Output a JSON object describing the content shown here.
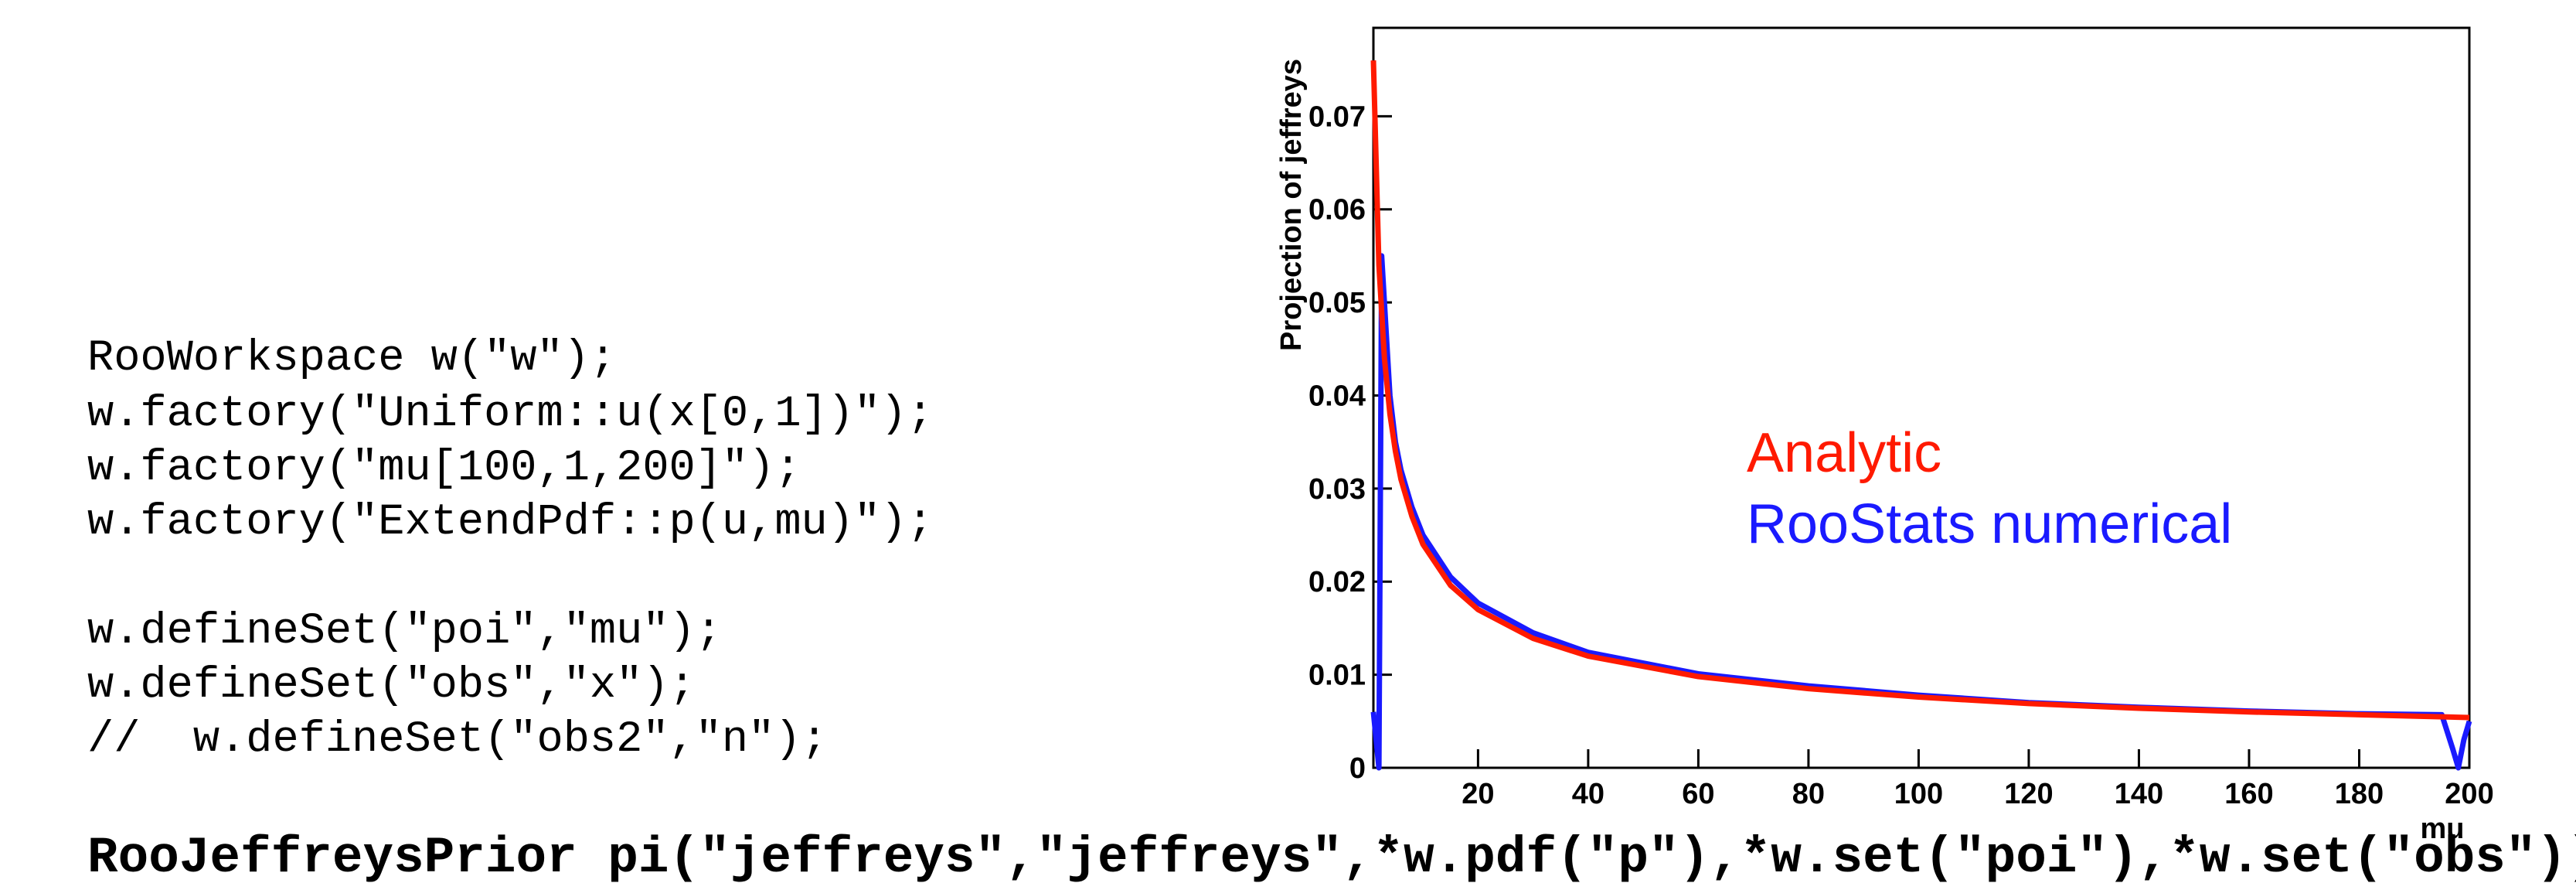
{
  "code": {
    "setup": [
      "RooWorkspace w(\"w\");",
      "w.factory(\"Uniform::u(x[0,1])\");",
      "w.factory(\"mu[100,1,200]\");",
      "w.factory(\"ExtendPdf::p(u,mu)\");"
    ],
    "sets": [
      "w.defineSet(\"poi\",\"mu\");",
      "w.defineSet(\"obs\",\"x\");",
      "//  w.defineSet(\"obs2\",\"n\");"
    ],
    "statement": "RooJeffreysPrior pi(\"jeffreys\",\"jeffreys\",*w.pdf(\"p\"),*w.set(\"poi\"),*w.set(\"obs\"));"
  },
  "chart_data": {
    "type": "line",
    "xlabel": "mu",
    "ylabel": "Projection of jeffreys",
    "xlim": [
      1,
      200
    ],
    "xticks": [
      20,
      40,
      60,
      80,
      100,
      120,
      140,
      160,
      180,
      200
    ],
    "ylim": [
      0,
      0.0795
    ],
    "yticks": [
      0,
      0.01,
      0.02,
      0.03,
      0.04,
      0.05,
      0.06,
      0.07
    ],
    "series": [
      {
        "name": "Analytic",
        "color": "#ff1a00",
        "x": [
          1,
          2,
          3,
          4,
          5,
          6,
          8,
          10,
          15,
          20,
          30,
          40,
          60,
          80,
          100,
          120,
          140,
          160,
          180,
          200
        ],
        "values": [
          0.076,
          0.054,
          0.044,
          0.038,
          0.034,
          0.031,
          0.027,
          0.024,
          0.0196,
          0.017,
          0.0139,
          0.012,
          0.0098,
          0.0085,
          0.0076,
          0.0069,
          0.0064,
          0.006,
          0.0057,
          0.0054
        ]
      },
      {
        "name": "RooStats numerical",
        "color": "#1a1aff",
        "x": [
          1,
          1.5,
          2,
          2.5,
          3,
          4,
          5,
          6,
          8,
          10,
          15,
          20,
          30,
          40,
          60,
          80,
          100,
          120,
          140,
          160,
          180,
          195,
          197,
          198,
          199,
          200
        ],
        "values": [
          0.006,
          0.003,
          0,
          0.055,
          0.05,
          0.04,
          0.035,
          0.032,
          0.028,
          0.025,
          0.0205,
          0.0177,
          0.0145,
          0.0124,
          0.0101,
          0.0088,
          0.0078,
          0.007,
          0.0065,
          0.0061,
          0.0058,
          0.0057,
          0.002,
          0,
          0.003,
          0.005
        ]
      }
    ]
  }
}
